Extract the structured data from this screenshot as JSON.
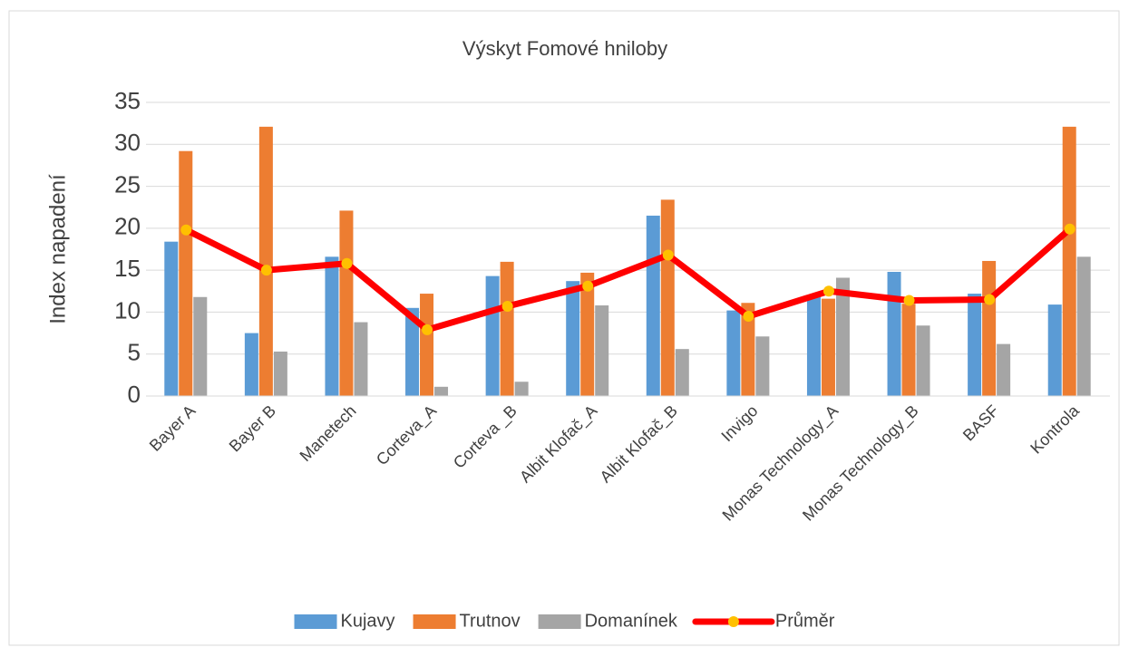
{
  "chart_data": {
    "type": "bar_line",
    "title": "Výskyt Fomové hniloby",
    "y_label": "Index napadení",
    "categories": [
      "Bayer A",
      "Bayer B",
      "Manetech",
      "Corteva_A",
      "Corteva _B",
      "Albit Klofač_A",
      "Albit Klofač_B",
      "Invigo",
      "Monas Technology_A",
      "Monas Technology_B",
      "BASF",
      "Kontrola"
    ],
    "series": [
      {
        "name": "Kujavy",
        "color": "#5b9bd5",
        "type": "bar",
        "values": [
          18.4,
          7.5,
          16.6,
          10.5,
          14.3,
          13.7,
          21.5,
          10.2,
          11.8,
          14.8,
          12.2,
          10.9
        ]
      },
      {
        "name": "Trutnov",
        "color": "#ed7d31",
        "type": "bar",
        "values": [
          29.2,
          32.1,
          22.1,
          12.2,
          16.0,
          14.7,
          23.4,
          11.1,
          11.6,
          11.0,
          16.1,
          32.1
        ]
      },
      {
        "name": "Domanínek",
        "color": "#a5a5a5",
        "type": "bar",
        "values": [
          11.8,
          5.3,
          8.8,
          1.1,
          1.7,
          10.8,
          5.6,
          7.1,
          14.1,
          8.4,
          6.2,
          16.6
        ]
      },
      {
        "name": "Průměr",
        "color": "#ff0000",
        "marker_color": "#ffc000",
        "type": "line",
        "values": [
          19.8,
          15.0,
          15.8,
          7.9,
          10.7,
          13.1,
          16.8,
          9.5,
          12.5,
          11.4,
          11.5,
          19.9
        ]
      }
    ],
    "ylim": [
      0,
      35
    ],
    "yticks": [
      0,
      5,
      10,
      15,
      20,
      25,
      30,
      35
    ],
    "grid": true,
    "legend": "bottom"
  }
}
